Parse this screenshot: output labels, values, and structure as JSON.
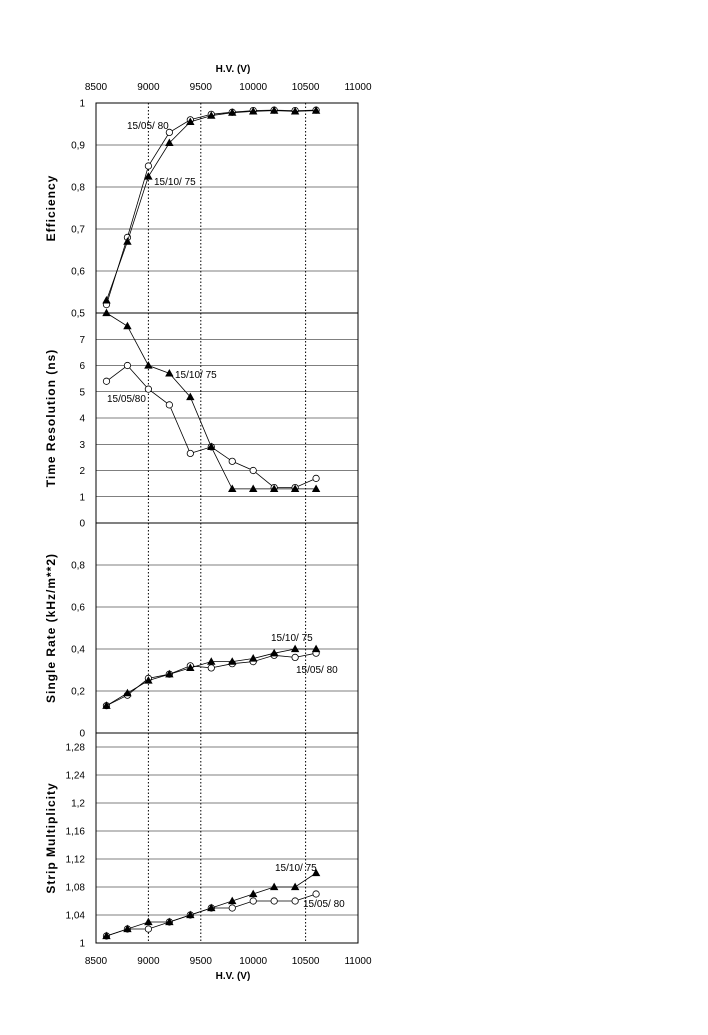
{
  "chart_data": [
    {
      "type": "line",
      "panel": "efficiency",
      "ylabel": "Efficiency",
      "xlabel": "H.V.   (V)",
      "xlim": [
        8500,
        11000
      ],
      "x_ticks": [
        "8500",
        "9000",
        "9500",
        "10000",
        "10500",
        "11000"
      ],
      "ylim": [
        0.5,
        1.0
      ],
      "y_ticks": [
        {
          "value": 0.5,
          "label": "0,5"
        },
        {
          "value": 0.6,
          "label": "0,6"
        },
        {
          "value": 0.7,
          "label": "0,7"
        },
        {
          "value": 0.8,
          "label": "0,8"
        },
        {
          "value": 0.9,
          "label": "0,9"
        },
        {
          "value": 1.0,
          "label": "1"
        }
      ],
      "series": [
        {
          "name": "15/10/75",
          "marker": "triangle",
          "x": [
            8600,
            8800,
            9000,
            9200,
            9400,
            9600,
            9800,
            10000,
            10200,
            10400,
            10600
          ],
          "y": [
            0.53,
            0.67,
            0.825,
            0.905,
            0.955,
            0.97,
            0.977,
            0.98,
            0.982,
            0.98,
            0.982
          ]
        },
        {
          "name": "15/05/80",
          "marker": "circle",
          "x": [
            8600,
            8800,
            9000,
            9200,
            9400,
            9600,
            9800,
            10000,
            10200,
            10400,
            10600
          ],
          "y": [
            0.52,
            0.68,
            0.85,
            0.93,
            0.96,
            0.973,
            0.978,
            0.982,
            0.983,
            0.982,
            0.983
          ]
        }
      ],
      "annotations": [
        {
          "text": "15/05/ 80",
          "series": "15/05/80"
        },
        {
          "text": "15/10/ 75",
          "series": "15/10/75"
        }
      ]
    },
    {
      "type": "line",
      "panel": "time-resolution",
      "ylabel": "Time   Resolution   (ns)",
      "xlim": [
        8500,
        11000
      ],
      "ylim": [
        0,
        8
      ],
      "y_ticks": [
        {
          "value": 0,
          "label": "0"
        },
        {
          "value": 1,
          "label": "1"
        },
        {
          "value": 2,
          "label": "2"
        },
        {
          "value": 3,
          "label": "3"
        },
        {
          "value": 4,
          "label": "4"
        },
        {
          "value": 5,
          "label": "5"
        },
        {
          "value": 6,
          "label": "6"
        },
        {
          "value": 7,
          "label": "7"
        }
      ],
      "series": [
        {
          "name": "15/10/75",
          "marker": "triangle",
          "x": [
            8600,
            8800,
            9000,
            9200,
            9400,
            9600,
            9800,
            10000,
            10200,
            10400,
            10600
          ],
          "y": [
            8.0,
            7.5,
            6.0,
            5.7,
            4.8,
            2.9,
            1.3,
            1.3,
            1.3,
            1.3,
            1.3
          ]
        },
        {
          "name": "15/05/80",
          "marker": "circle",
          "x": [
            8600,
            8800,
            9000,
            9200,
            9400,
            9600,
            9800,
            10000,
            10200,
            10400,
            10600
          ],
          "y": [
            5.4,
            6.0,
            5.1,
            4.5,
            2.65,
            2.9,
            2.35,
            2.0,
            1.35,
            1.35,
            1.7
          ]
        }
      ],
      "annotations": [
        {
          "text": "15/10/ 75",
          "series": "15/10/75"
        },
        {
          "text": "15/05/80",
          "series": "15/05/80"
        }
      ]
    },
    {
      "type": "line",
      "panel": "single-rate",
      "ylabel": "Single    Rate    (kHz/m**2)",
      "xlim": [
        8500,
        11000
      ],
      "ylim": [
        0,
        1.0
      ],
      "y_ticks": [
        {
          "value": 0,
          "label": "0"
        },
        {
          "value": 0.2,
          "label": "0,2"
        },
        {
          "value": 0.4,
          "label": "0,4"
        },
        {
          "value": 0.6,
          "label": "0,6"
        },
        {
          "value": 0.8,
          "label": "0,8"
        }
      ],
      "series": [
        {
          "name": "15/10/75",
          "marker": "triangle",
          "x": [
            8600,
            8800,
            9000,
            9200,
            9400,
            9600,
            9800,
            10000,
            10200,
            10400,
            10600
          ],
          "y": [
            0.13,
            0.19,
            0.25,
            0.28,
            0.31,
            0.34,
            0.34,
            0.355,
            0.38,
            0.4,
            0.4
          ]
        },
        {
          "name": "15/05/80",
          "marker": "circle",
          "x": [
            8600,
            8800,
            9000,
            9200,
            9400,
            9600,
            9800,
            10000,
            10200,
            10400,
            10600
          ],
          "y": [
            0.13,
            0.18,
            0.26,
            0.28,
            0.32,
            0.31,
            0.33,
            0.34,
            0.37,
            0.36,
            0.38
          ]
        }
      ],
      "annotations": [
        {
          "text": "15/10/ 75",
          "series": "15/10/75"
        },
        {
          "text": "15/05/ 80",
          "series": "15/05/80"
        }
      ]
    },
    {
      "type": "line",
      "panel": "strip-multiplicity",
      "ylabel": "Strip    Multiplicity",
      "xlabel": "H.V.   (V)",
      "xlim": [
        8500,
        11000
      ],
      "x_ticks": [
        "8500",
        "9000",
        "9500",
        "10000",
        "10500",
        "11000"
      ],
      "ylim": [
        1.0,
        1.3
      ],
      "y_ticks": [
        {
          "value": 1.0,
          "label": "1"
        },
        {
          "value": 1.04,
          "label": "1,04"
        },
        {
          "value": 1.08,
          "label": "1,08"
        },
        {
          "value": 1.12,
          "label": "1,12"
        },
        {
          "value": 1.16,
          "label": "1,16"
        },
        {
          "value": 1.2,
          "label": "1,2"
        },
        {
          "value": 1.24,
          "label": "1,24"
        },
        {
          "value": 1.28,
          "label": "1,28"
        }
      ],
      "series": [
        {
          "name": "15/10/75",
          "marker": "triangle",
          "x": [
            8600,
            8800,
            9000,
            9200,
            9400,
            9600,
            9800,
            10000,
            10200,
            10400,
            10600
          ],
          "y": [
            1.01,
            1.02,
            1.03,
            1.03,
            1.04,
            1.05,
            1.06,
            1.07,
            1.08,
            1.08,
            1.1
          ]
        },
        {
          "name": "15/05/80",
          "marker": "circle",
          "x": [
            8600,
            8800,
            9000,
            9200,
            9400,
            9600,
            9800,
            10000,
            10200,
            10400,
            10600
          ],
          "y": [
            1.01,
            1.02,
            1.02,
            1.03,
            1.04,
            1.05,
            1.05,
            1.06,
            1.06,
            1.06,
            1.07
          ]
        }
      ],
      "annotations": [
        {
          "text": "15/10/ 75",
          "series": "15/10/75"
        },
        {
          "text": "15/05/ 80",
          "series": "15/05/80"
        }
      ]
    }
  ]
}
